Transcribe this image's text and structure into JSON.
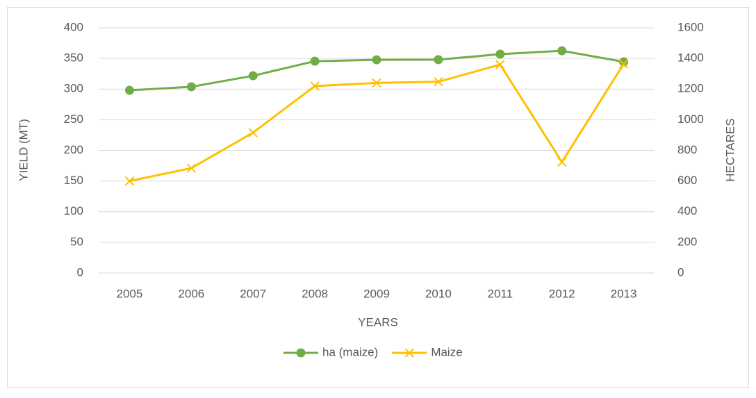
{
  "chart_data": {
    "type": "line",
    "xlabel": "YEARS",
    "ylabel": "YIELD (MT)",
    "y2label": "HECTARES",
    "categories": [
      "2005",
      "2006",
      "2007",
      "2008",
      "2009",
      "2010",
      "2011",
      "2012",
      "2013"
    ],
    "series": [
      {
        "name": "ha (maize)",
        "color": "#70ad47",
        "axis": "y2",
        "marker": "circle",
        "values": [
          1192,
          1215,
          1287,
          1382,
          1391,
          1392,
          1428,
          1450,
          1378
        ]
      },
      {
        "name": "Maize",
        "color": "#ffc000",
        "marker": "x",
        "values": [
          150,
          171,
          229,
          305,
          310,
          312,
          340,
          181,
          341
        ]
      }
    ],
    "ylim": [
      0,
      400
    ],
    "yticks": [
      0,
      50,
      100,
      150,
      200,
      250,
      300,
      350,
      400
    ],
    "y2lim": [
      0,
      1600
    ],
    "y2ticks": [
      0,
      200,
      400,
      600,
      800,
      1000,
      1200,
      1400,
      1600
    ],
    "grid": true,
    "legend": "bottom"
  }
}
